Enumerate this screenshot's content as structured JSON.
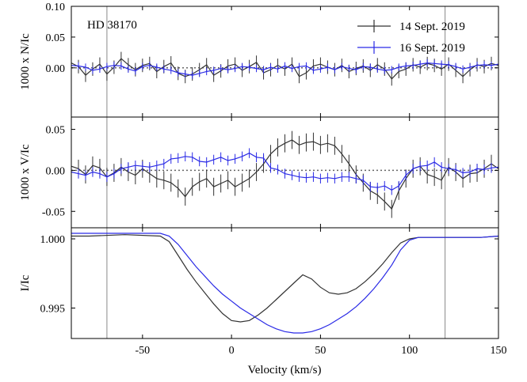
{
  "chart_data": {
    "type": "line",
    "object_label": "HD 38170",
    "xlabel": "Velocity (km/s)",
    "xlim": [
      -90,
      150
    ],
    "x_ticks": [
      -50,
      0,
      50,
      100,
      150
    ],
    "x_tick_labels": [
      "-50",
      "0",
      "50",
      "100",
      "150"
    ],
    "vertical_lines_x": [
      -70,
      120
    ],
    "legend": {
      "placement": "top-right",
      "entries": [
        {
          "label": "14 Sept. 2019",
          "color": "#333333"
        },
        {
          "label": "16 Sept. 2019",
          "color": "#2a2ae6"
        }
      ]
    },
    "panels": [
      {
        "id": "null",
        "ylabel": "1000 x N/Ic",
        "ylim": [
          -0.08,
          0.1
        ],
        "y_ticks": [
          0.0,
          0.05,
          0.1
        ],
        "y_tick_labels": [
          "0.00",
          "0.05",
          "0.10"
        ],
        "zero_line": true,
        "series": [
          {
            "color": "#333333",
            "x": [
              -90,
              -86,
              -82,
              -78,
              -74,
              -70,
              -66,
              -62,
              -58,
              -54,
              -50,
              -46,
              -42,
              -38,
              -34,
              -30,
              -26,
              -22,
              -18,
              -14,
              -10,
              -6,
              -2,
              2,
              6,
              10,
              14,
              18,
              22,
              26,
              30,
              34,
              38,
              42,
              46,
              50,
              54,
              58,
              62,
              66,
              70,
              74,
              78,
              82,
              86,
              90,
              94,
              98,
              102,
              106,
              110,
              114,
              118,
              122,
              126,
              130,
              134,
              138,
              142,
              146,
              150
            ],
            "y": [
              0.008,
              0.002,
              -0.012,
              -0.002,
              0.006,
              -0.01,
              0.001,
              0.015,
              0.005,
              -0.003,
              0.004,
              0.007,
              -0.006,
              0.002,
              0.008,
              -0.009,
              -0.014,
              -0.01,
              -0.003,
              0.005,
              -0.012,
              -0.005,
              0.003,
              0.006,
              -0.004,
              0.002,
              0.009,
              -0.008,
              -0.003,
              0.004,
              -0.002,
              0.006,
              -0.014,
              -0.008,
              0.003,
              0.006,
              0.001,
              -0.003,
              0.004,
              -0.006,
              -0.001,
              0.003,
              -0.004,
              0.005,
              -0.002,
              -0.018,
              -0.006,
              -0.002,
              0.005,
              0.001,
              0.007,
              0.004,
              -0.002,
              0.006,
              -0.004,
              -0.014,
              -0.003,
              0.005,
              0.002,
              0.007,
              0.004
            ],
            "err": 0.011
          },
          {
            "color": "#2a2ae6",
            "x": [
              -90,
              -86,
              -82,
              -78,
              -74,
              -70,
              -66,
              -62,
              -58,
              -54,
              -50,
              -46,
              -42,
              -38,
              -34,
              -30,
              -26,
              -22,
              -18,
              -14,
              -10,
              -6,
              -2,
              2,
              6,
              10,
              14,
              18,
              22,
              26,
              30,
              34,
              38,
              42,
              46,
              50,
              54,
              58,
              62,
              66,
              70,
              74,
              78,
              82,
              86,
              90,
              94,
              98,
              102,
              106,
              110,
              114,
              118,
              122,
              126,
              130,
              134,
              138,
              142,
              146,
              150
            ],
            "y": [
              0.004,
              0.003,
              0.001,
              -0.004,
              -0.002,
              0.002,
              0.004,
              0.003,
              -0.002,
              -0.005,
              0.002,
              0.004,
              0.001,
              -0.002,
              -0.004,
              -0.008,
              -0.01,
              -0.012,
              -0.009,
              -0.006,
              -0.004,
              -0.001,
              -0.003,
              -0.001,
              0.002,
              0.001,
              -0.001,
              -0.003,
              0.001,
              -0.002,
              0.003,
              -0.001,
              0.002,
              0.003,
              -0.004,
              -0.002,
              0.001,
              -0.003,
              0.002,
              -0.001,
              -0.003,
              0.002,
              0.001,
              -0.002,
              -0.004,
              -0.003,
              0.001,
              0.003,
              0.004,
              0.006,
              0.008,
              0.007,
              0.006,
              0.005,
              0.002,
              -0.002,
              0.001,
              0.004,
              0.005,
              0.004,
              0.006
            ],
            "err": 0.006
          }
        ]
      },
      {
        "id": "stokes-v",
        "ylabel": "1000 x V/Ic",
        "ylim": [
          -0.07,
          0.065
        ],
        "y_ticks": [
          -0.05,
          0.0,
          0.05
        ],
        "y_tick_labels": [
          "-0.05",
          "0.00",
          "0.05"
        ],
        "zero_line": true,
        "series": [
          {
            "color": "#333333",
            "x": [
              -90,
              -86,
              -82,
              -78,
              -74,
              -70,
              -66,
              -62,
              -58,
              -54,
              -50,
              -46,
              -42,
              -38,
              -34,
              -30,
              -26,
              -22,
              -18,
              -14,
              -10,
              -6,
              -2,
              2,
              6,
              10,
              14,
              18,
              22,
              26,
              30,
              34,
              38,
              42,
              46,
              50,
              54,
              58,
              62,
              66,
              70,
              74,
              78,
              82,
              86,
              90,
              94,
              98,
              102,
              106,
              110,
              114,
              118,
              122,
              126,
              130,
              134,
              138,
              142,
              146,
              150
            ],
            "y": [
              0.005,
              0.002,
              -0.005,
              0.006,
              0.003,
              -0.008,
              -0.003,
              0.004,
              -0.002,
              -0.006,
              0.002,
              -0.004,
              -0.01,
              -0.012,
              -0.015,
              -0.022,
              -0.032,
              -0.02,
              -0.014,
              -0.01,
              -0.02,
              -0.016,
              -0.012,
              -0.02,
              -0.015,
              -0.01,
              -0.002,
              0.008,
              0.02,
              0.028,
              0.033,
              0.037,
              0.031,
              0.034,
              0.035,
              0.031,
              0.033,
              0.03,
              0.02,
              0.008,
              -0.005,
              -0.015,
              -0.025,
              -0.03,
              -0.038,
              -0.047,
              -0.025,
              -0.01,
              0.002,
              0.005,
              -0.005,
              -0.008,
              -0.012,
              0.004,
              -0.002,
              -0.01,
              -0.004,
              -0.003,
              0.002,
              0.008,
              0.002
            ],
            "err": 0.011
          },
          {
            "color": "#2a2ae6",
            "x": [
              -90,
              -86,
              -82,
              -78,
              -74,
              -70,
              -66,
              -62,
              -58,
              -54,
              -50,
              -46,
              -42,
              -38,
              -34,
              -30,
              -26,
              -22,
              -18,
              -14,
              -10,
              -6,
              -2,
              2,
              6,
              10,
              14,
              18,
              22,
              26,
              30,
              34,
              38,
              42,
              46,
              50,
              54,
              58,
              62,
              66,
              70,
              74,
              78,
              82,
              86,
              90,
              94,
              98,
              102,
              106,
              110,
              114,
              118,
              122,
              126,
              130,
              134,
              138,
              142,
              146,
              150
            ],
            "y": [
              -0.002,
              -0.004,
              -0.006,
              -0.002,
              -0.004,
              -0.008,
              -0.004,
              0.002,
              0.004,
              0.006,
              0.005,
              0.004,
              0.006,
              0.008,
              0.014,
              0.015,
              0.017,
              0.016,
              0.011,
              0.01,
              0.013,
              0.016,
              0.012,
              0.014,
              0.017,
              0.021,
              0.016,
              0.015,
              0.003,
              0.001,
              -0.004,
              -0.006,
              -0.008,
              -0.009,
              -0.008,
              -0.01,
              -0.009,
              -0.01,
              -0.008,
              -0.008,
              -0.01,
              -0.012,
              -0.02,
              -0.021,
              -0.019,
              -0.024,
              -0.019,
              -0.006,
              0.002,
              0.005,
              0.006,
              0.01,
              0.004,
              0.002,
              0.001,
              -0.003,
              -0.002,
              0.002,
              0.001,
              0.003,
              0.004
            ],
            "err": 0.006
          }
        ]
      },
      {
        "id": "intensity",
        "ylabel": "I/Ic",
        "ylim": [
          0.9928,
          1.0008
        ],
        "y_ticks": [
          0.995,
          1.0
        ],
        "y_tick_labels": [
          "0.995",
          "1.000"
        ],
        "zero_line": false,
        "series": [
          {
            "color": "#333333",
            "x": [
              -90,
              -80,
              -60,
              -40,
              -35,
              -30,
              -25,
              -20,
              -15,
              -10,
              -5,
              0,
              5,
              10,
              15,
              20,
              25,
              30,
              35,
              40,
              45,
              50,
              55,
              60,
              65,
              70,
              75,
              80,
              85,
              90,
              95,
              100,
              105,
              110,
              120,
              130,
              140,
              150
            ],
            "y": [
              1.0002,
              1.0002,
              1.0003,
              1.0002,
              0.9998,
              0.9988,
              0.9978,
              0.9969,
              0.9961,
              0.9953,
              0.9946,
              0.9941,
              0.994,
              0.9941,
              0.9945,
              0.995,
              0.9956,
              0.9962,
              0.9968,
              0.9974,
              0.9971,
              0.9965,
              0.9961,
              0.996,
              0.9961,
              0.9964,
              0.9969,
              0.9975,
              0.9982,
              0.999,
              0.9997,
              1.0,
              1.0001,
              1.0001,
              1.0001,
              1.0001,
              1.0001,
              1.0002
            ]
          },
          {
            "color": "#2a2ae6",
            "x": [
              -90,
              -80,
              -60,
              -40,
              -35,
              -30,
              -25,
              -20,
              -15,
              -10,
              -5,
              0,
              5,
              10,
              15,
              20,
              25,
              30,
              35,
              40,
              45,
              50,
              55,
              60,
              65,
              70,
              75,
              80,
              85,
              90,
              95,
              100,
              105,
              110,
              120,
              130,
              140,
              150
            ],
            "y": [
              1.0004,
              1.0004,
              1.0004,
              1.0004,
              1.0002,
              0.9996,
              0.9988,
              0.998,
              0.9973,
              0.9966,
              0.996,
              0.9955,
              0.995,
              0.9946,
              0.9942,
              0.9938,
              0.9935,
              0.9933,
              0.9932,
              0.9932,
              0.9933,
              0.9935,
              0.9938,
              0.9942,
              0.9946,
              0.9951,
              0.9957,
              0.9964,
              0.9972,
              0.9981,
              0.9992,
              0.9999,
              1.0001,
              1.0001,
              1.0001,
              1.0001,
              1.0001,
              1.0002
            ]
          }
        ]
      }
    ]
  }
}
